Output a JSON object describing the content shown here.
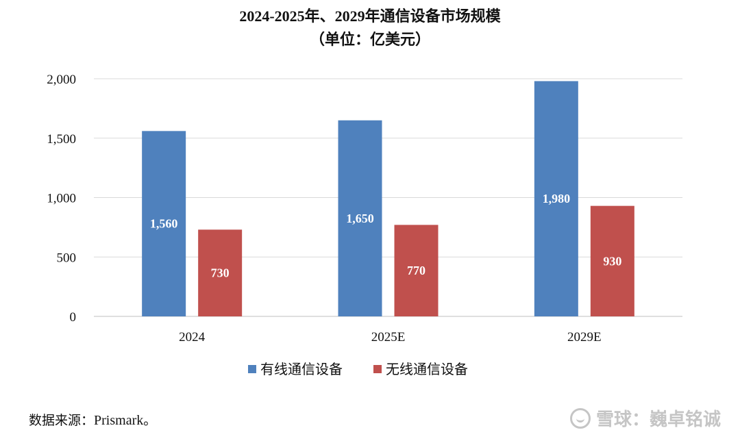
{
  "title_line1": "2024-2025年、2029年通信设备市场规模",
  "title_line2": "（单位：亿美元）",
  "chart_data": {
    "type": "bar",
    "categories": [
      "2024",
      "2025E",
      "2029E"
    ],
    "series": [
      {
        "name": "有线通信设备",
        "values": [
          1560,
          1650,
          1980
        ],
        "labels": [
          "1,560",
          "1,650",
          "1,980"
        ],
        "color": "#4F81BD"
      },
      {
        "name": "无线通信设备",
        "values": [
          730,
          770,
          930
        ],
        "labels": [
          "730",
          "770",
          "930"
        ],
        "color": "#C0504D"
      }
    ],
    "ylim": [
      0,
      2000
    ],
    "yticks": [
      0,
      500,
      1000,
      1500,
      2000
    ],
    "ytick_labels": [
      "0",
      "500",
      "1,000",
      "1,500",
      "2,000"
    ],
    "grid": true,
    "legend": "bottom"
  },
  "source": {
    "prefix": "数据来源：",
    "name": "Prismark",
    "suffix": "。"
  },
  "watermark": "雪球：巍卓铭诚"
}
